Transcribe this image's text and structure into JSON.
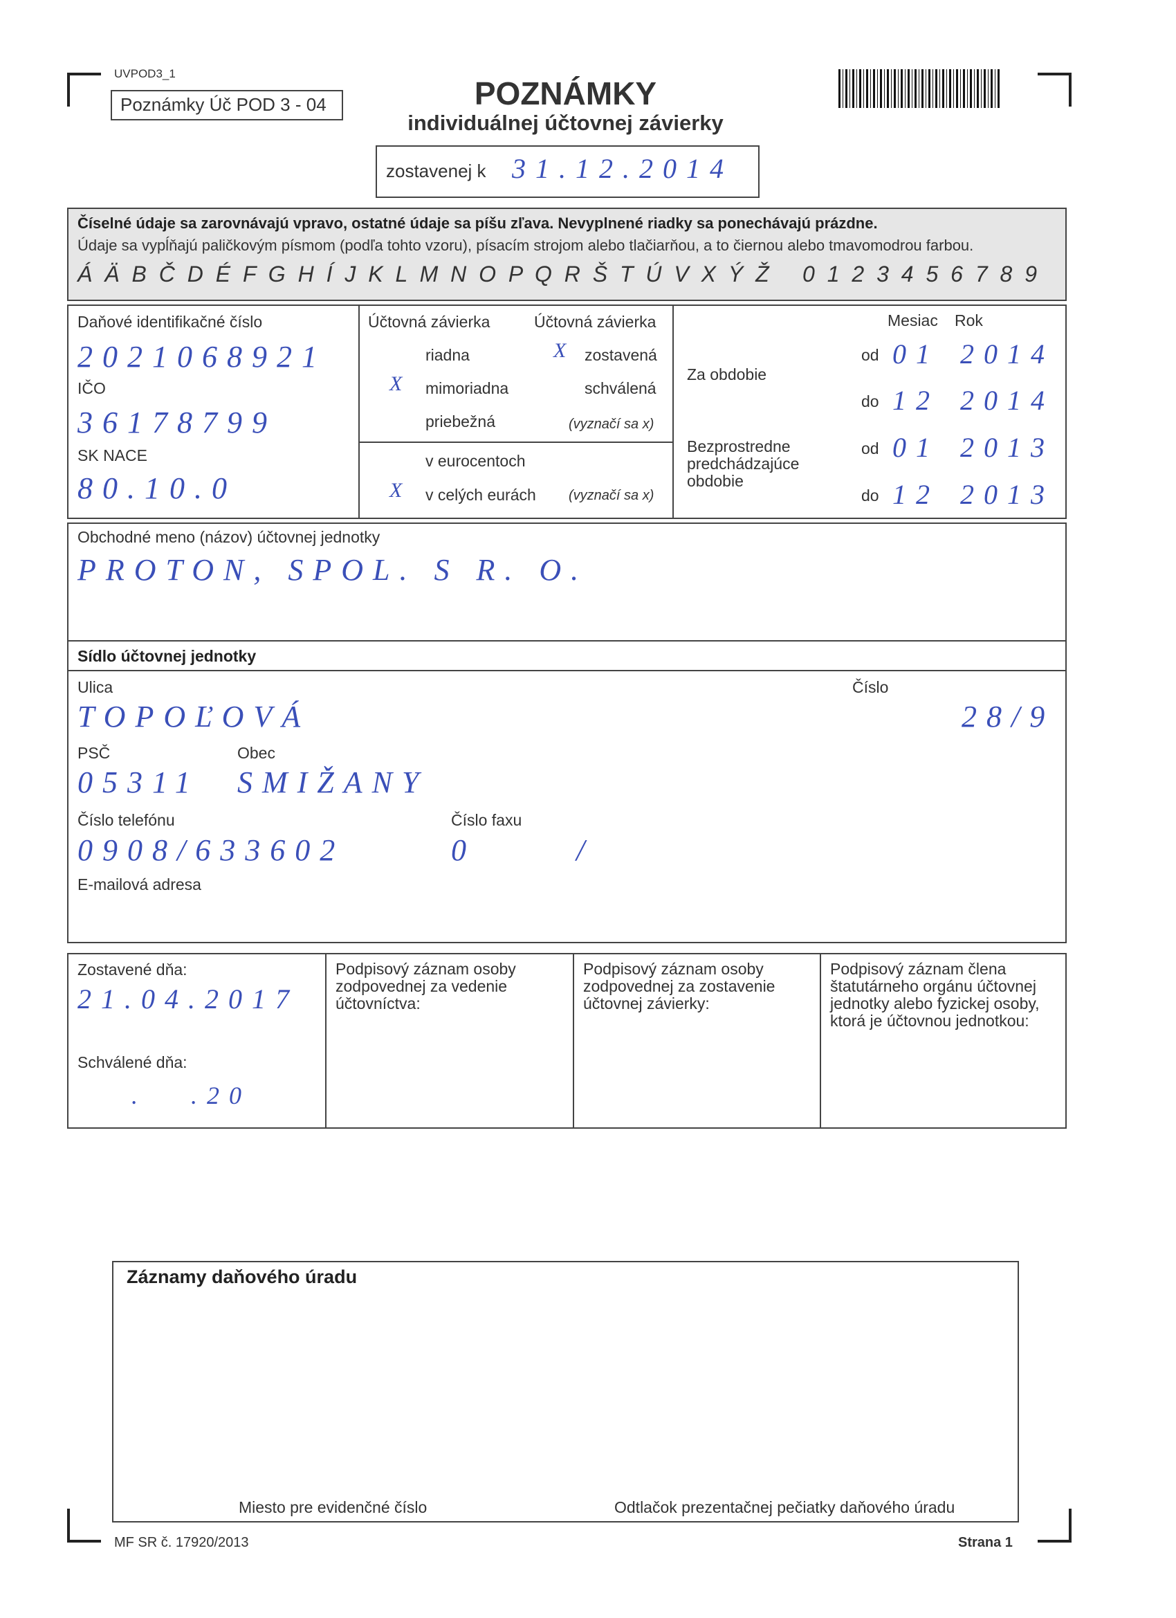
{
  "header": {
    "form_code": "UVPOD3_1",
    "form_label": "Poznámky Úč POD 3 - 04",
    "title": "POZNÁMKY",
    "subtitle": "individuálnej účtovnej závierky",
    "date_label": "zostavenej k",
    "date_value": "31.12.2014"
  },
  "instructions": {
    "line1": "Číselné údaje sa zarovnávajú vpravo, ostatné údaje sa píšu zľava. Nevyplnené riadky sa ponechávajú prázdne.",
    "line2": "Údaje sa vypĺňajú paličkovým písmom (podľa tohto vzoru), písacím strojom alebo tlačiarňou, a to čiernou alebo tmavomodrou farbou.",
    "letters": "Á Ä B Č D É F G H Í J K L M N O P Q R Š T Ú V X Ý Ž",
    "digits": "0 1 2 3 4 5 6 7 8 9"
  },
  "identification": {
    "dic_label": "Daňové identifikačné číslo",
    "dic_value": "2021068921",
    "ico_label": "IČO",
    "ico_value": "36178799",
    "nace_label": "SK NACE",
    "nace_value": "80.10.0"
  },
  "statement": {
    "type_label_1": "Účtovná závierka",
    "type_label_2": "Účtovná závierka",
    "regular": "riadna",
    "extraordinary": "mimoriadna",
    "extraordinary_mark": "X",
    "interim": "priebežná",
    "compiled": "zostavená",
    "compiled_mark": "X",
    "approved": "schválená",
    "note_1": "(vyznačí sa x)",
    "eurocents": "v eurocentoch",
    "whole_euros": "v celých eurách",
    "whole_euros_mark": "X",
    "note_2": "(vyznačí sa x)"
  },
  "period": {
    "month_label": "Mesiac",
    "year_label": "Rok",
    "current_label": "Za obdobie",
    "current_from_label": "od",
    "current_from_month": "01",
    "current_from_year": "2014",
    "current_to_label": "do",
    "current_to_month": "12",
    "current_to_year": "2014",
    "previous_label": "Bezprostredne predchádzajúce obdobie",
    "previous_from_label": "od",
    "previous_from_month": "01",
    "previous_from_year": "2013",
    "previous_to_label": "do",
    "previous_to_month": "12",
    "previous_to_year": "2013"
  },
  "business": {
    "name_label": "Obchodné meno (názov) účtovnej jednotky",
    "name_value": "PROTON, SPOL. S R. O."
  },
  "seat": {
    "title": "Sídlo účtovnej jednotky",
    "street_label": "Ulica",
    "street_value": "TOPOĽOVÁ",
    "number_label": "Číslo",
    "number_value": "28/9",
    "zip_label": "PSČ",
    "zip_value": "05311",
    "city_label": "Obec",
    "city_value": "SMIŽANY",
    "phone_label": "Číslo telefónu",
    "phone_value": "0908/633602",
    "fax_label": "Číslo faxu",
    "fax_value": "0 /",
    "email_label": "E-mailová adresa"
  },
  "signatures": {
    "compiled_label": "Zostavené dňa:",
    "compiled_value": "21.04.2017",
    "approved_label": "Schválené dňa:",
    "approved_value": ". .20",
    "accounting_person": "Podpisový záznam osoby zodpovednej za vedenie účtovníctva:",
    "statement_person": "Podpisový záznam osoby zodpovednej za zostavenie účtovnej závierky:",
    "board_member": "Podpisový záznam člena štatutárneho orgánu účtovnej jednotky alebo fyzickej osoby, ktorá je účtovnou jednotkou:"
  },
  "tax_office": {
    "title": "Záznamy daňového úradu",
    "record_number": "Miesto pre evidenčné číslo",
    "stamp": "Odtlačok prezentačnej pečiatky daňového úradu"
  },
  "footer": {
    "ministry": "MF SR č. 17920/2013",
    "page": "Strana 1"
  }
}
